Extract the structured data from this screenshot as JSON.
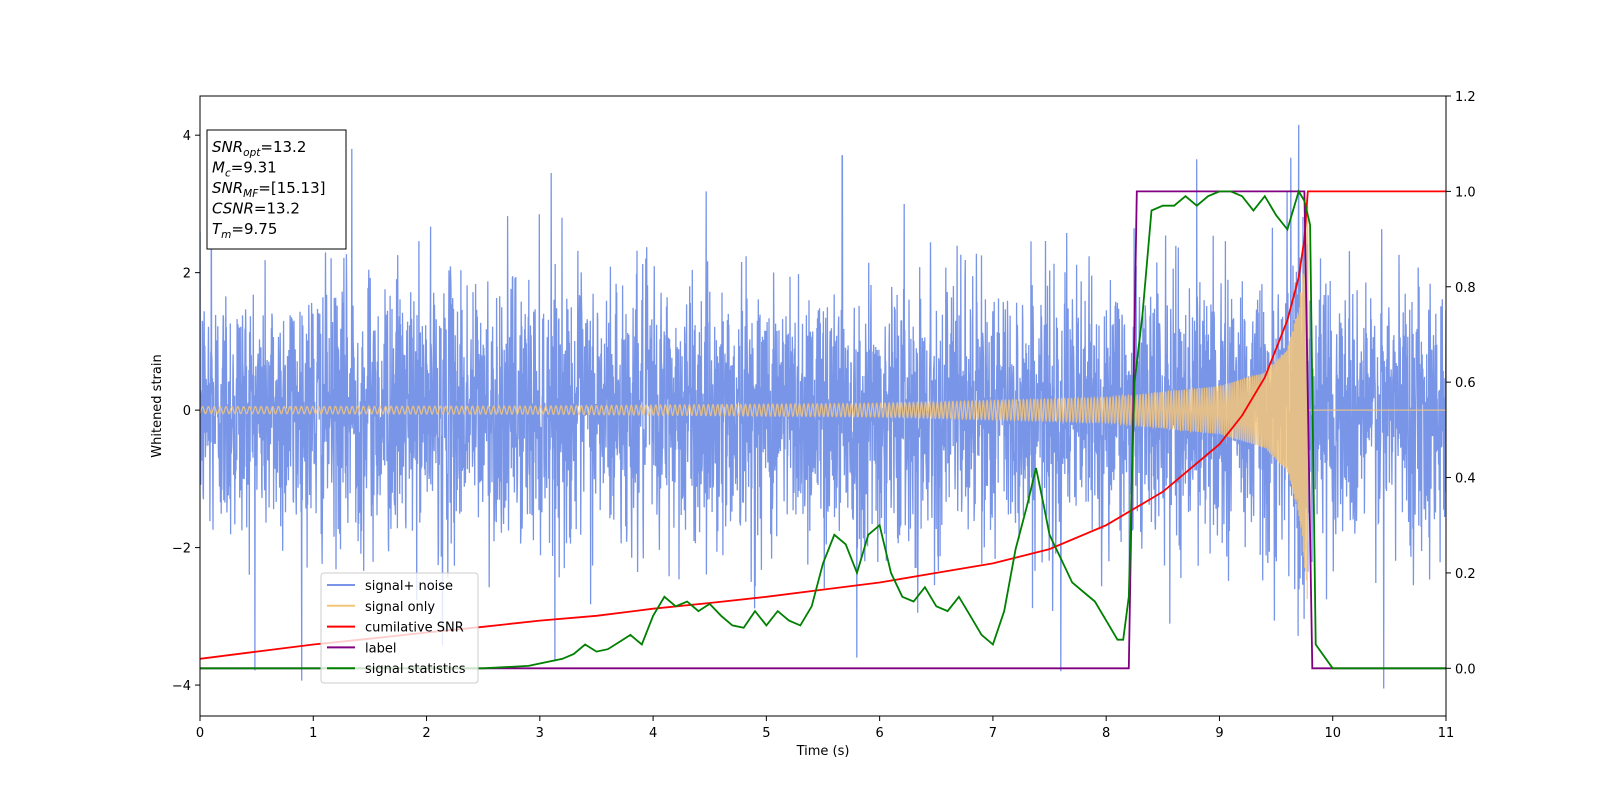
{
  "chart_data": {
    "type": "line",
    "title": "",
    "xlabel": "Time (s)",
    "ylabel": "Whitened strain",
    "y2label": "",
    "xlim": [
      0,
      11
    ],
    "ylim": [
      -4.45,
      4.57
    ],
    "y2lim": [
      -0.1,
      1.2
    ],
    "xticks": [
      0,
      1,
      2,
      3,
      4,
      5,
      6,
      7,
      8,
      9,
      10,
      11
    ],
    "yticks": [
      -4,
      -2,
      0,
      2,
      4
    ],
    "y2ticks": [
      0.0,
      0.2,
      0.4,
      0.6,
      0.8,
      1.0,
      1.2
    ],
    "grid": false,
    "legend_position": "lower-left",
    "info_box": {
      "position": "upper-left",
      "lines": [
        {
          "sym": "SNR",
          "sub": "opt",
          "val": "=13.2"
        },
        {
          "sym": "M",
          "sub": "c",
          "val": "=9.31"
        },
        {
          "sym": "SNR",
          "sub": "MF",
          "val": "=[15.13]"
        },
        {
          "sym": "CSNR",
          "sub": "",
          "val": "=13.2"
        },
        {
          "sym": "T",
          "sub": "m",
          "val": "=9.75"
        }
      ]
    },
    "series": [
      {
        "name": "signal+ noise",
        "color": "#7895e8",
        "axis": "left",
        "kind": "noise",
        "noise_sigma": 0.95,
        "spike_peaks": [
          [
            1.34,
            3.8
          ],
          [
            5.67,
            3.7
          ],
          [
            8.8,
            3.65
          ],
          [
            9.7,
            4.15
          ],
          [
            2.14,
            -3.42
          ],
          [
            5.8,
            -3.6
          ],
          [
            7.6,
            -3.8
          ],
          [
            10.45,
            -4.05
          ],
          [
            0.1,
            3.55
          ],
          [
            3.1,
            3.45
          ]
        ]
      },
      {
        "name": "signal only",
        "color": "#f5c57a",
        "axis": "left",
        "kind": "chirp",
        "merger_time": 9.78,
        "amplitude_envelope": [
          [
            0,
            0.05
          ],
          [
            3,
            0.06
          ],
          [
            6,
            0.1
          ],
          [
            8,
            0.18
          ],
          [
            9,
            0.35
          ],
          [
            9.4,
            0.55
          ],
          [
            9.6,
            0.9
          ],
          [
            9.7,
            1.5
          ],
          [
            9.75,
            2.2
          ],
          [
            9.78,
            3.1
          ],
          [
            9.8,
            0
          ],
          [
            11,
            0
          ]
        ]
      },
      {
        "name": "cumilative SNR",
        "color": "#ff0000",
        "axis": "right",
        "x": [
          0,
          0.5,
          1,
          1.5,
          2,
          2.5,
          3,
          3.5,
          4,
          4.5,
          5,
          5.5,
          6,
          6.5,
          7,
          7.5,
          8,
          8.5,
          9,
          9.2,
          9.4,
          9.6,
          9.7,
          9.75,
          9.78,
          11
        ],
        "y": [
          0.02,
          0.035,
          0.05,
          0.062,
          0.075,
          0.087,
          0.1,
          0.11,
          0.125,
          0.137,
          0.15,
          0.165,
          0.18,
          0.2,
          0.22,
          0.25,
          0.3,
          0.37,
          0.47,
          0.53,
          0.61,
          0.73,
          0.82,
          0.9,
          1.0,
          1.0
        ]
      },
      {
        "name": "label",
        "color": "#800080",
        "axis": "right",
        "x": [
          0,
          8.2,
          8.27,
          9.75,
          9.82,
          11
        ],
        "y": [
          0,
          0,
          1,
          1,
          0,
          0
        ]
      },
      {
        "name": "signal statistics",
        "color": "#008000",
        "axis": "right",
        "x": [
          0,
          0.5,
          1,
          1.5,
          2,
          2.5,
          2.9,
          3,
          3.2,
          3.3,
          3.4,
          3.5,
          3.6,
          3.7,
          3.8,
          3.9,
          4,
          4.1,
          4.2,
          4.3,
          4.4,
          4.5,
          4.6,
          4.7,
          4.8,
          4.9,
          5,
          5.1,
          5.2,
          5.3,
          5.4,
          5.5,
          5.6,
          5.7,
          5.8,
          5.9,
          6,
          6.1,
          6.2,
          6.3,
          6.4,
          6.5,
          6.6,
          6.7,
          6.8,
          6.9,
          7,
          7.1,
          7.2,
          7.3,
          7.38,
          7.45,
          7.5,
          7.6,
          7.7,
          7.8,
          7.9,
          8,
          8.1,
          8.15,
          8.2,
          8.25,
          8.32,
          8.4,
          8.5,
          8.6,
          8.7,
          8.8,
          8.9,
          9,
          9.1,
          9.2,
          9.3,
          9.4,
          9.5,
          9.6,
          9.7,
          9.75,
          9.8,
          9.85,
          10,
          10.5,
          11
        ],
        "y": [
          0.0,
          0.0,
          0.0,
          0.0,
          0.0,
          0.0,
          0.005,
          0.01,
          0.02,
          0.03,
          0.05,
          0.035,
          0.04,
          0.055,
          0.07,
          0.05,
          0.11,
          0.15,
          0.13,
          0.14,
          0.12,
          0.135,
          0.11,
          0.09,
          0.085,
          0.12,
          0.09,
          0.12,
          0.1,
          0.09,
          0.13,
          0.22,
          0.28,
          0.26,
          0.2,
          0.28,
          0.3,
          0.2,
          0.15,
          0.14,
          0.17,
          0.13,
          0.12,
          0.15,
          0.11,
          0.07,
          0.05,
          0.12,
          0.25,
          0.34,
          0.42,
          0.34,
          0.28,
          0.23,
          0.18,
          0.16,
          0.14,
          0.1,
          0.06,
          0.06,
          0.15,
          0.6,
          0.74,
          0.96,
          0.97,
          0.97,
          0.99,
          0.97,
          0.99,
          1.0,
          1.0,
          0.99,
          0.96,
          0.99,
          0.95,
          0.92,
          1.0,
          0.98,
          0.93,
          0.05,
          0.0,
          0.0,
          0.0
        ]
      }
    ]
  }
}
